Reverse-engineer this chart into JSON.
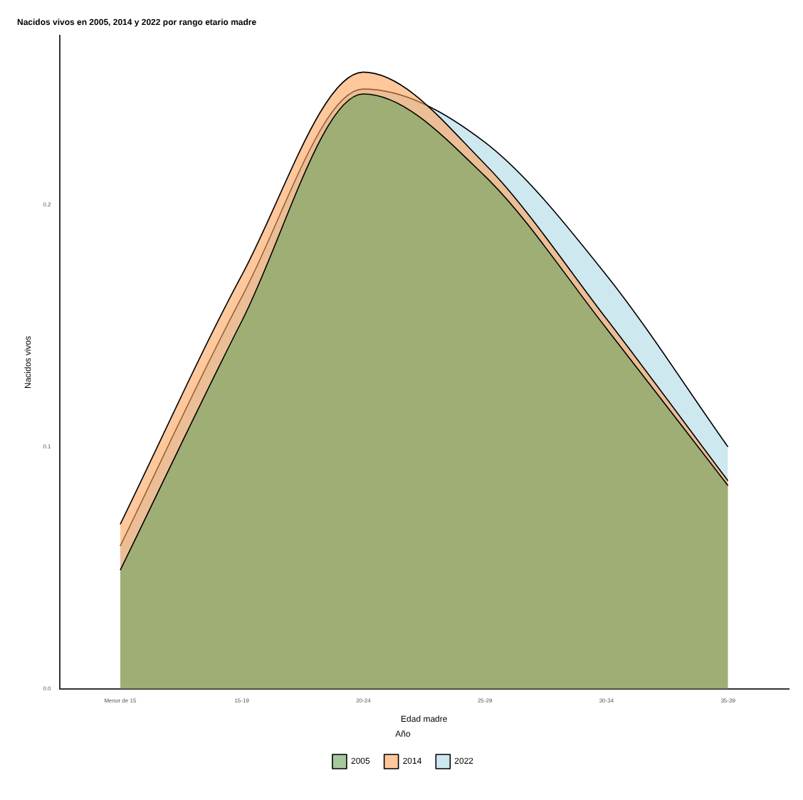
{
  "chart_data": {
    "type": "area",
    "title": "Nacidos vivos en 2005, 2014 y 2022 por rango etario madre",
    "xlabel": "Edad madre",
    "ylabel": "Nacidos vivos",
    "legend_title": "Año",
    "categories": [
      "Menor de 15",
      "15-19",
      "20-24",
      "25-29",
      "30-34",
      "35-39"
    ],
    "series": [
      {
        "name": "2005",
        "color": "#6aa35e",
        "values": [
          0.049,
          0.152,
          0.246,
          0.212,
          0.149,
          0.084
        ]
      },
      {
        "name": "2014",
        "color": "#ffa15a",
        "values": [
          0.068,
          0.171,
          0.255,
          0.217,
          0.153,
          0.086
        ]
      },
      {
        "name": "2022",
        "color": "#add8e6",
        "values": [
          0.059,
          0.162,
          0.248,
          0.226,
          0.171,
          0.1
        ]
      }
    ],
    "ylim": [
      0,
      0.27
    ],
    "yticks": [
      {
        "value": 0,
        "label": "0.0"
      },
      {
        "value": 0.1,
        "label": "0.1"
      },
      {
        "value": 0.2,
        "label": "0.2"
      }
    ],
    "grid": false,
    "legend": "bottom",
    "marker": "none"
  }
}
